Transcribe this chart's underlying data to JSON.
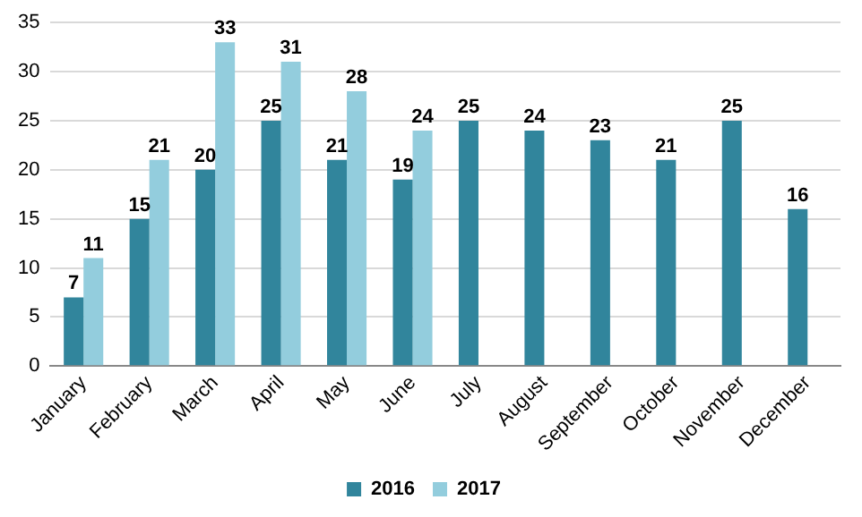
{
  "chart_data": {
    "type": "bar",
    "categories": [
      "January",
      "February",
      "March",
      "April",
      "May",
      "June",
      "July",
      "August",
      "September",
      "October",
      "November",
      "December"
    ],
    "series": [
      {
        "name": "2016",
        "color": "#31859c",
        "values": [
          7,
          15,
          20,
          25,
          21,
          19,
          25,
          24,
          23,
          21,
          25,
          16
        ]
      },
      {
        "name": "2017",
        "color": "#93cddd",
        "values": [
          11,
          21,
          33,
          31,
          28,
          24,
          null,
          null,
          null,
          null,
          null,
          null
        ]
      }
    ],
    "ylim": [
      0,
      35
    ],
    "yticks": [
      0,
      5,
      10,
      15,
      20,
      25,
      30,
      35
    ],
    "grid": "y",
    "legend": "bottom",
    "data_labels": true
  }
}
